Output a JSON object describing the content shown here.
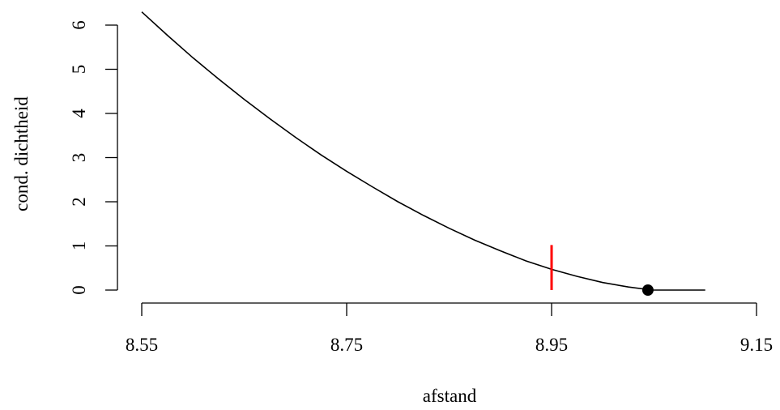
{
  "chart_data": {
    "type": "line",
    "xlabel": "afstand",
    "ylabel": "cond. dichtheid",
    "xlim": [
      8.536,
      9.142
    ],
    "ylim": [
      -0.05,
      6.15
    ],
    "x_ticks": [
      {
        "value": 8.55,
        "label": "8.55"
      },
      {
        "value": 8.75,
        "label": "8.75"
      },
      {
        "value": 8.95,
        "label": "8.95"
      },
      {
        "value": 9.15,
        "label": "9.15"
      }
    ],
    "y_ticks": [
      {
        "value": 0,
        "label": "0"
      },
      {
        "value": 1,
        "label": "1"
      },
      {
        "value": 2,
        "label": "2"
      },
      {
        "value": 3,
        "label": "3"
      },
      {
        "value": 4,
        "label": "4"
      },
      {
        "value": 5,
        "label": "5"
      },
      {
        "value": 6,
        "label": "6"
      }
    ],
    "series": [
      {
        "color": "#000000",
        "x": [
          8.55,
          8.575,
          8.6,
          8.625,
          8.65,
          8.675,
          8.7,
          8.725,
          8.75,
          8.775,
          8.8,
          8.825,
          8.85,
          8.875,
          8.9,
          8.925,
          8.95,
          8.975,
          9.0,
          9.025,
          9.048,
          9.07,
          9.1
        ],
        "y": [
          6.3,
          5.77,
          5.26,
          4.78,
          4.32,
          3.88,
          3.46,
          3.06,
          2.69,
          2.34,
          2.0,
          1.69,
          1.4,
          1.13,
          0.89,
          0.66,
          0.47,
          0.31,
          0.17,
          0.07,
          0.0,
          0.0,
          0.0
        ]
      }
    ],
    "marker_line": {
      "x": 8.95,
      "y0": 0.0,
      "y1": 1.02,
      "color": "#ff0000"
    },
    "marker_point": {
      "x": 9.044,
      "y": 0.0,
      "color": "#000000"
    }
  }
}
